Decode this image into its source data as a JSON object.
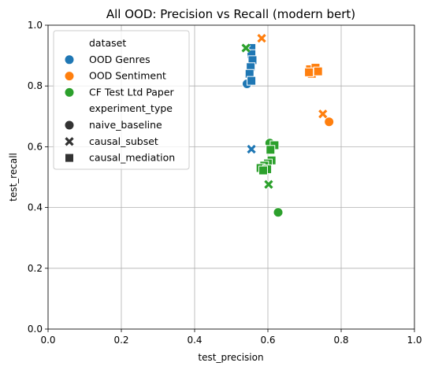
{
  "chart_data": {
    "type": "scatter",
    "title": "All OOD: Precision vs Recall (modern bert)",
    "xlabel": "test_precision",
    "ylabel": "test_recall",
    "xlim": [
      0.0,
      1.0
    ],
    "ylim": [
      0.0,
      1.0
    ],
    "xticks": [
      "0.0",
      "0.2",
      "0.4",
      "0.6",
      "0.8",
      "1.0"
    ],
    "yticks": [
      "0.0",
      "0.2",
      "0.4",
      "0.6",
      "0.8",
      "1.0"
    ],
    "grid": true,
    "legend_placement": "upper-left",
    "hue_title": "dataset",
    "style_title": "experiment_type",
    "datasets": [
      {
        "name": "OOD Genres",
        "color": "#1f77b4"
      },
      {
        "name": "OOD Sentiment",
        "color": "#ff7f0e"
      },
      {
        "name": "CF Test Ltd Paper",
        "color": "#2ca02c"
      }
    ],
    "experiment_types": [
      {
        "name": "naive_baseline",
        "marker": "circle"
      },
      {
        "name": "causal_subset",
        "marker": "x"
      },
      {
        "name": "causal_mediation",
        "marker": "square"
      }
    ],
    "points": [
      {
        "dataset": "OOD Genres",
        "experiment_type": "naive_baseline",
        "x": 0.543,
        "y": 0.807
      },
      {
        "dataset": "OOD Genres",
        "experiment_type": "causal_subset",
        "x": 0.555,
        "y": 0.592
      },
      {
        "dataset": "OOD Genres",
        "experiment_type": "causal_mediation",
        "x": 0.555,
        "y": 0.925
      },
      {
        "dataset": "OOD Genres",
        "experiment_type": "causal_mediation",
        "x": 0.555,
        "y": 0.905
      },
      {
        "dataset": "OOD Genres",
        "experiment_type": "causal_mediation",
        "x": 0.558,
        "y": 0.885
      },
      {
        "dataset": "OOD Genres",
        "experiment_type": "causal_mediation",
        "x": 0.553,
        "y": 0.862
      },
      {
        "dataset": "OOD Genres",
        "experiment_type": "causal_mediation",
        "x": 0.55,
        "y": 0.84
      },
      {
        "dataset": "OOD Genres",
        "experiment_type": "causal_mediation",
        "x": 0.555,
        "y": 0.817
      },
      {
        "dataset": "OOD Sentiment",
        "experiment_type": "naive_baseline",
        "x": 0.767,
        "y": 0.682
      },
      {
        "dataset": "OOD Sentiment",
        "experiment_type": "causal_subset",
        "x": 0.583,
        "y": 0.957
      },
      {
        "dataset": "OOD Sentiment",
        "experiment_type": "causal_subset",
        "x": 0.75,
        "y": 0.708
      },
      {
        "dataset": "OOD Sentiment",
        "experiment_type": "causal_mediation",
        "x": 0.715,
        "y": 0.855
      },
      {
        "dataset": "OOD Sentiment",
        "experiment_type": "causal_mediation",
        "x": 0.73,
        "y": 0.86
      },
      {
        "dataset": "OOD Sentiment",
        "experiment_type": "causal_mediation",
        "x": 0.72,
        "y": 0.84
      },
      {
        "dataset": "OOD Sentiment",
        "experiment_type": "causal_mediation",
        "x": 0.737,
        "y": 0.848
      },
      {
        "dataset": "OOD Sentiment",
        "experiment_type": "causal_mediation",
        "x": 0.712,
        "y": 0.845
      },
      {
        "dataset": "CF Test Ltd Paper",
        "experiment_type": "naive_baseline",
        "x": 0.605,
        "y": 0.612
      },
      {
        "dataset": "CF Test Ltd Paper",
        "experiment_type": "naive_baseline",
        "x": 0.628,
        "y": 0.384
      },
      {
        "dataset": "CF Test Ltd Paper",
        "experiment_type": "causal_subset",
        "x": 0.54,
        "y": 0.925
      },
      {
        "dataset": "CF Test Ltd Paper",
        "experiment_type": "causal_subset",
        "x": 0.602,
        "y": 0.476
      },
      {
        "dataset": "CF Test Ltd Paper",
        "experiment_type": "causal_mediation",
        "x": 0.618,
        "y": 0.605
      },
      {
        "dataset": "CF Test Ltd Paper",
        "experiment_type": "causal_mediation",
        "x": 0.607,
        "y": 0.59
      },
      {
        "dataset": "CF Test Ltd Paper",
        "experiment_type": "causal_mediation",
        "x": 0.61,
        "y": 0.555
      },
      {
        "dataset": "CF Test Ltd Paper",
        "experiment_type": "causal_mediation",
        "x": 0.6,
        "y": 0.545
      },
      {
        "dataset": "CF Test Ltd Paper",
        "experiment_type": "causal_mediation",
        "x": 0.59,
        "y": 0.538
      },
      {
        "dataset": "CF Test Ltd Paper",
        "experiment_type": "causal_mediation",
        "x": 0.58,
        "y": 0.53
      },
      {
        "dataset": "CF Test Ltd Paper",
        "experiment_type": "causal_mediation",
        "x": 0.598,
        "y": 0.526
      },
      {
        "dataset": "CF Test Ltd Paper",
        "experiment_type": "causal_mediation",
        "x": 0.587,
        "y": 0.522
      }
    ]
  }
}
